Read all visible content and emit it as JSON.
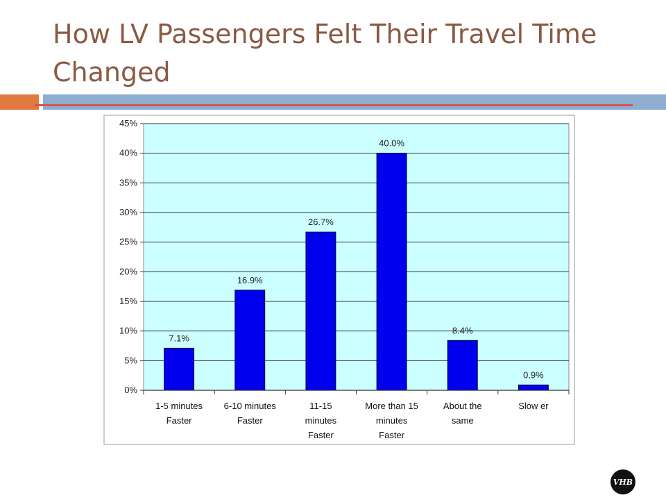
{
  "slide": {
    "title": "How LV Passengers Felt Their Travel Time Changed",
    "logo_text": "VHB"
  },
  "colors": {
    "title": "#8a5a44",
    "orange_accent": "#e07a3f",
    "blue_bar": "#8eaed1",
    "red_rule": "#d9534f",
    "plot_background": "#ccffff",
    "bar_fill": "#0000ee"
  },
  "chart_data": {
    "type": "bar",
    "title": "",
    "xlabel": "",
    "ylabel": "",
    "categories": [
      [
        "1-5 minutes",
        "Faster"
      ],
      [
        "6-10 minutes",
        "Faster"
      ],
      [
        "11-15",
        "minutes",
        "Faster"
      ],
      [
        "More than 15",
        "minutes",
        "Faster"
      ],
      [
        "About the",
        "same"
      ],
      [
        "Slow er"
      ]
    ],
    "values": [
      7.1,
      16.9,
      26.7,
      40.0,
      8.4,
      0.9
    ],
    "data_labels": [
      "7.1%",
      "16.9%",
      "26.7%",
      "40.0%",
      "8.4%",
      "0.9%"
    ],
    "y_ticks": [
      "0%",
      "5%",
      "10%",
      "15%",
      "20%",
      "25%",
      "30%",
      "35%",
      "40%",
      "45%"
    ],
    "ylim": [
      0,
      45
    ],
    "grid": true,
    "legend": "none"
  }
}
